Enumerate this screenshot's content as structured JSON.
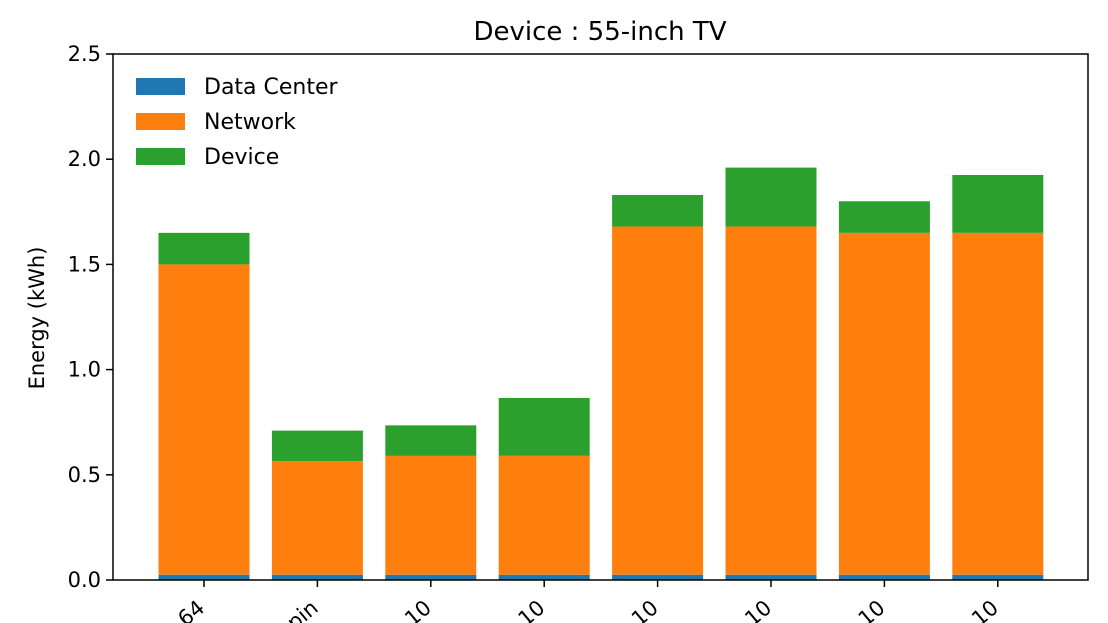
{
  "chart_data": {
    "type": "bar",
    "stacked": true,
    "title": "Device : 55-inch TV",
    "xlabel": "",
    "ylabel": "Energy (kWh)",
    "ylim": [
      0,
      2.5
    ],
    "yticks": [
      "0.0",
      "0.5",
      "1.0",
      "1.5",
      "2.0",
      "2.5"
    ],
    "categories": [
      "64",
      "pin",
      "10",
      "10",
      "10",
      "10",
      "10",
      "10"
    ],
    "series": [
      {
        "name": "Data Center",
        "color": "#1f77b4",
        "values": [
          0.025,
          0.025,
          0.025,
          0.025,
          0.025,
          0.025,
          0.025,
          0.025
        ]
      },
      {
        "name": "Network",
        "color": "#ff7f0e",
        "values": [
          1.475,
          0.54,
          0.565,
          0.565,
          1.655,
          1.655,
          1.625,
          1.625
        ]
      },
      {
        "name": "Device",
        "color": "#2ca02c",
        "values": [
          0.15,
          0.145,
          0.145,
          0.275,
          0.15,
          0.28,
          0.15,
          0.275
        ]
      }
    ],
    "legend_position": "top-left",
    "grid": false
  }
}
